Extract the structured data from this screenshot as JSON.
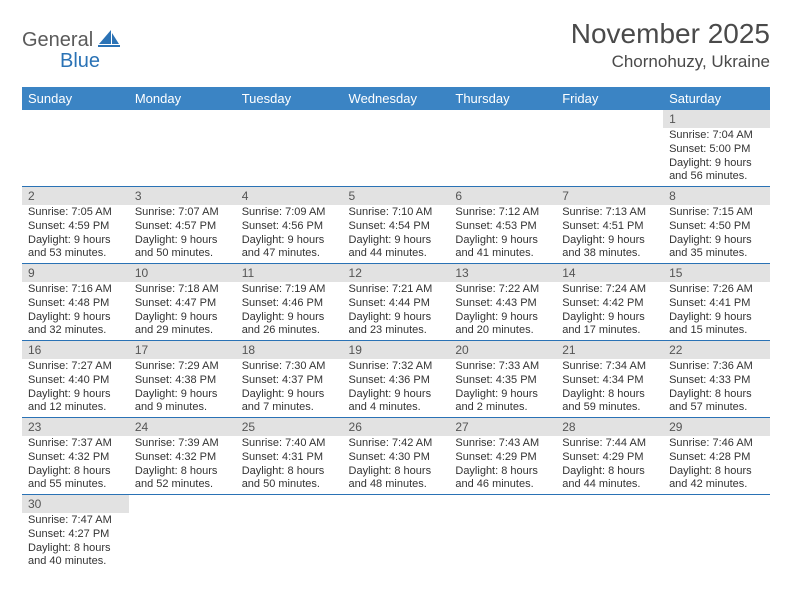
{
  "logo": {
    "part1": "General",
    "part2": "Blue"
  },
  "header": {
    "title": "November 2025",
    "location": "Chornohuzy, Ukraine"
  },
  "colors": {
    "header_bg": "#3b84c4",
    "header_fg": "#ffffff",
    "daynum_bg": "#e2e2e2",
    "row_border": "#2a72b5",
    "logo_blue": "#2a72b5",
    "logo_gray": "#5a5a5a",
    "text": "#333333",
    "background": "#ffffff"
  },
  "weekdays": [
    "Sunday",
    "Monday",
    "Tuesday",
    "Wednesday",
    "Thursday",
    "Friday",
    "Saturday"
  ],
  "weeks": [
    [
      {
        "n": "",
        "l1": "",
        "l2": "",
        "l3": "",
        "l4": ""
      },
      {
        "n": "",
        "l1": "",
        "l2": "",
        "l3": "",
        "l4": ""
      },
      {
        "n": "",
        "l1": "",
        "l2": "",
        "l3": "",
        "l4": ""
      },
      {
        "n": "",
        "l1": "",
        "l2": "",
        "l3": "",
        "l4": ""
      },
      {
        "n": "",
        "l1": "",
        "l2": "",
        "l3": "",
        "l4": ""
      },
      {
        "n": "",
        "l1": "",
        "l2": "",
        "l3": "",
        "l4": ""
      },
      {
        "n": "1",
        "l1": "Sunrise: 7:04 AM",
        "l2": "Sunset: 5:00 PM",
        "l3": "Daylight: 9 hours",
        "l4": "and 56 minutes."
      }
    ],
    [
      {
        "n": "2",
        "l1": "Sunrise: 7:05 AM",
        "l2": "Sunset: 4:59 PM",
        "l3": "Daylight: 9 hours",
        "l4": "and 53 minutes."
      },
      {
        "n": "3",
        "l1": "Sunrise: 7:07 AM",
        "l2": "Sunset: 4:57 PM",
        "l3": "Daylight: 9 hours",
        "l4": "and 50 minutes."
      },
      {
        "n": "4",
        "l1": "Sunrise: 7:09 AM",
        "l2": "Sunset: 4:56 PM",
        "l3": "Daylight: 9 hours",
        "l4": "and 47 minutes."
      },
      {
        "n": "5",
        "l1": "Sunrise: 7:10 AM",
        "l2": "Sunset: 4:54 PM",
        "l3": "Daylight: 9 hours",
        "l4": "and 44 minutes."
      },
      {
        "n": "6",
        "l1": "Sunrise: 7:12 AM",
        "l2": "Sunset: 4:53 PM",
        "l3": "Daylight: 9 hours",
        "l4": "and 41 minutes."
      },
      {
        "n": "7",
        "l1": "Sunrise: 7:13 AM",
        "l2": "Sunset: 4:51 PM",
        "l3": "Daylight: 9 hours",
        "l4": "and 38 minutes."
      },
      {
        "n": "8",
        "l1": "Sunrise: 7:15 AM",
        "l2": "Sunset: 4:50 PM",
        "l3": "Daylight: 9 hours",
        "l4": "and 35 minutes."
      }
    ],
    [
      {
        "n": "9",
        "l1": "Sunrise: 7:16 AM",
        "l2": "Sunset: 4:48 PM",
        "l3": "Daylight: 9 hours",
        "l4": "and 32 minutes."
      },
      {
        "n": "10",
        "l1": "Sunrise: 7:18 AM",
        "l2": "Sunset: 4:47 PM",
        "l3": "Daylight: 9 hours",
        "l4": "and 29 minutes."
      },
      {
        "n": "11",
        "l1": "Sunrise: 7:19 AM",
        "l2": "Sunset: 4:46 PM",
        "l3": "Daylight: 9 hours",
        "l4": "and 26 minutes."
      },
      {
        "n": "12",
        "l1": "Sunrise: 7:21 AM",
        "l2": "Sunset: 4:44 PM",
        "l3": "Daylight: 9 hours",
        "l4": "and 23 minutes."
      },
      {
        "n": "13",
        "l1": "Sunrise: 7:22 AM",
        "l2": "Sunset: 4:43 PM",
        "l3": "Daylight: 9 hours",
        "l4": "and 20 minutes."
      },
      {
        "n": "14",
        "l1": "Sunrise: 7:24 AM",
        "l2": "Sunset: 4:42 PM",
        "l3": "Daylight: 9 hours",
        "l4": "and 17 minutes."
      },
      {
        "n": "15",
        "l1": "Sunrise: 7:26 AM",
        "l2": "Sunset: 4:41 PM",
        "l3": "Daylight: 9 hours",
        "l4": "and 15 minutes."
      }
    ],
    [
      {
        "n": "16",
        "l1": "Sunrise: 7:27 AM",
        "l2": "Sunset: 4:40 PM",
        "l3": "Daylight: 9 hours",
        "l4": "and 12 minutes."
      },
      {
        "n": "17",
        "l1": "Sunrise: 7:29 AM",
        "l2": "Sunset: 4:38 PM",
        "l3": "Daylight: 9 hours",
        "l4": "and 9 minutes."
      },
      {
        "n": "18",
        "l1": "Sunrise: 7:30 AM",
        "l2": "Sunset: 4:37 PM",
        "l3": "Daylight: 9 hours",
        "l4": "and 7 minutes."
      },
      {
        "n": "19",
        "l1": "Sunrise: 7:32 AM",
        "l2": "Sunset: 4:36 PM",
        "l3": "Daylight: 9 hours",
        "l4": "and 4 minutes."
      },
      {
        "n": "20",
        "l1": "Sunrise: 7:33 AM",
        "l2": "Sunset: 4:35 PM",
        "l3": "Daylight: 9 hours",
        "l4": "and 2 minutes."
      },
      {
        "n": "21",
        "l1": "Sunrise: 7:34 AM",
        "l2": "Sunset: 4:34 PM",
        "l3": "Daylight: 8 hours",
        "l4": "and 59 minutes."
      },
      {
        "n": "22",
        "l1": "Sunrise: 7:36 AM",
        "l2": "Sunset: 4:33 PM",
        "l3": "Daylight: 8 hours",
        "l4": "and 57 minutes."
      }
    ],
    [
      {
        "n": "23",
        "l1": "Sunrise: 7:37 AM",
        "l2": "Sunset: 4:32 PM",
        "l3": "Daylight: 8 hours",
        "l4": "and 55 minutes."
      },
      {
        "n": "24",
        "l1": "Sunrise: 7:39 AM",
        "l2": "Sunset: 4:32 PM",
        "l3": "Daylight: 8 hours",
        "l4": "and 52 minutes."
      },
      {
        "n": "25",
        "l1": "Sunrise: 7:40 AM",
        "l2": "Sunset: 4:31 PM",
        "l3": "Daylight: 8 hours",
        "l4": "and 50 minutes."
      },
      {
        "n": "26",
        "l1": "Sunrise: 7:42 AM",
        "l2": "Sunset: 4:30 PM",
        "l3": "Daylight: 8 hours",
        "l4": "and 48 minutes."
      },
      {
        "n": "27",
        "l1": "Sunrise: 7:43 AM",
        "l2": "Sunset: 4:29 PM",
        "l3": "Daylight: 8 hours",
        "l4": "and 46 minutes."
      },
      {
        "n": "28",
        "l1": "Sunrise: 7:44 AM",
        "l2": "Sunset: 4:29 PM",
        "l3": "Daylight: 8 hours",
        "l4": "and 44 minutes."
      },
      {
        "n": "29",
        "l1": "Sunrise: 7:46 AM",
        "l2": "Sunset: 4:28 PM",
        "l3": "Daylight: 8 hours",
        "l4": "and 42 minutes."
      }
    ],
    [
      {
        "n": "30",
        "l1": "Sunrise: 7:47 AM",
        "l2": "Sunset: 4:27 PM",
        "l3": "Daylight: 8 hours",
        "l4": "and 40 minutes."
      },
      {
        "n": "",
        "l1": "",
        "l2": "",
        "l3": "",
        "l4": ""
      },
      {
        "n": "",
        "l1": "",
        "l2": "",
        "l3": "",
        "l4": ""
      },
      {
        "n": "",
        "l1": "",
        "l2": "",
        "l3": "",
        "l4": ""
      },
      {
        "n": "",
        "l1": "",
        "l2": "",
        "l3": "",
        "l4": ""
      },
      {
        "n": "",
        "l1": "",
        "l2": "",
        "l3": "",
        "l4": ""
      },
      {
        "n": "",
        "l1": "",
        "l2": "",
        "l3": "",
        "l4": ""
      }
    ]
  ]
}
